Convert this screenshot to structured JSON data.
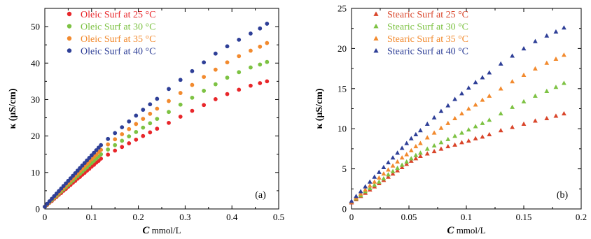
{
  "chart_data": [
    {
      "type": "scatter",
      "panel_label": "(a)",
      "xlabel": {
        "bold": "C",
        "rest": " mmol/L"
      },
      "ylabel": "κ (μS/cm)",
      "xlim": [
        0,
        0.5
      ],
      "ylim": [
        0,
        55
      ],
      "xticks": [
        "0",
        "0.1",
        "0.2",
        "0.3",
        "0.4",
        "0.5"
      ],
      "xtick_values": [
        0,
        0.1,
        0.2,
        0.3,
        0.4,
        0.5
      ],
      "yticks": [
        "0",
        "10",
        "20",
        "30",
        "40",
        "50"
      ],
      "ytick_values": [
        0,
        10,
        20,
        30,
        40,
        50
      ],
      "marker": "circle",
      "legend_position": "top-left",
      "series": [
        {
          "name": "Oleic Surf at 25 °C",
          "color": "#e8262a",
          "x": [
            0.0,
            0.005,
            0.01,
            0.015,
            0.02,
            0.025,
            0.03,
            0.035,
            0.04,
            0.045,
            0.05,
            0.055,
            0.06,
            0.065,
            0.07,
            0.075,
            0.08,
            0.085,
            0.09,
            0.095,
            0.1,
            0.105,
            0.11,
            0.115,
            0.12,
            0.135,
            0.15,
            0.165,
            0.18,
            0.195,
            0.21,
            0.225,
            0.24,
            0.265,
            0.29,
            0.315,
            0.34,
            0.365,
            0.39,
            0.415,
            0.44,
            0.46,
            0.475
          ],
          "y": [
            0.6,
            1.1,
            1.7,
            2.2,
            2.8,
            3.3,
            3.9,
            4.4,
            5.0,
            5.5,
            6.1,
            6.6,
            7.2,
            7.7,
            8.3,
            8.8,
            9.4,
            9.9,
            10.5,
            11.0,
            11.6,
            12.1,
            12.7,
            13.2,
            13.8,
            14.9,
            16.0,
            17.0,
            18.0,
            19.0,
            20.0,
            21.0,
            22.0,
            23.6,
            25.3,
            26.9,
            28.5,
            30.1,
            31.5,
            32.7,
            33.8,
            34.5,
            35.0
          ]
        },
        {
          "name": "Oleic Surf at 30 °C",
          "color": "#7dc243",
          "x": [
            0.0,
            0.005,
            0.01,
            0.015,
            0.02,
            0.025,
            0.03,
            0.035,
            0.04,
            0.045,
            0.05,
            0.055,
            0.06,
            0.065,
            0.07,
            0.075,
            0.08,
            0.085,
            0.09,
            0.095,
            0.1,
            0.105,
            0.11,
            0.115,
            0.12,
            0.135,
            0.15,
            0.165,
            0.18,
            0.195,
            0.21,
            0.225,
            0.24,
            0.265,
            0.29,
            0.315,
            0.34,
            0.365,
            0.39,
            0.415,
            0.44,
            0.46,
            0.475
          ],
          "y": [
            0.6,
            1.2,
            1.8,
            2.4,
            3.0,
            3.6,
            4.2,
            4.8,
            5.4,
            6.0,
            6.6,
            7.2,
            7.8,
            8.4,
            9.0,
            9.6,
            10.2,
            10.8,
            11.4,
            12.0,
            12.6,
            13.2,
            13.8,
            14.4,
            15.0,
            16.3,
            17.5,
            18.7,
            19.9,
            21.1,
            22.3,
            23.5,
            24.7,
            26.6,
            28.6,
            30.5,
            32.4,
            34.2,
            36.0,
            37.5,
            38.8,
            39.6,
            40.3
          ]
        },
        {
          "name": "Oleic Surf at 35 °C",
          "color": "#f28a2e",
          "x": [
            0.0,
            0.005,
            0.01,
            0.015,
            0.02,
            0.025,
            0.03,
            0.035,
            0.04,
            0.045,
            0.05,
            0.055,
            0.06,
            0.065,
            0.07,
            0.075,
            0.08,
            0.085,
            0.09,
            0.095,
            0.1,
            0.105,
            0.11,
            0.115,
            0.12,
            0.135,
            0.15,
            0.165,
            0.18,
            0.195,
            0.21,
            0.225,
            0.24,
            0.265,
            0.29,
            0.315,
            0.34,
            0.365,
            0.39,
            0.415,
            0.44,
            0.46,
            0.475
          ],
          "y": [
            0.6,
            1.3,
            1.9,
            2.6,
            3.2,
            3.9,
            4.5,
            5.2,
            5.8,
            6.5,
            7.1,
            7.8,
            8.4,
            9.1,
            9.7,
            10.4,
            11.0,
            11.7,
            12.3,
            13.0,
            13.6,
            14.3,
            14.9,
            15.6,
            16.2,
            17.7,
            19.1,
            20.5,
            21.9,
            23.3,
            24.7,
            26.1,
            27.5,
            29.6,
            31.8,
            34.0,
            36.2,
            38.2,
            40.2,
            41.9,
            43.4,
            44.5,
            45.5
          ]
        },
        {
          "name": "Oleic Surf at 40 °C",
          "color": "#2e3f97",
          "x": [
            0.0,
            0.005,
            0.01,
            0.015,
            0.02,
            0.025,
            0.03,
            0.035,
            0.04,
            0.045,
            0.05,
            0.055,
            0.06,
            0.065,
            0.07,
            0.075,
            0.08,
            0.085,
            0.09,
            0.095,
            0.1,
            0.105,
            0.11,
            0.115,
            0.12,
            0.135,
            0.15,
            0.165,
            0.18,
            0.195,
            0.21,
            0.225,
            0.24,
            0.265,
            0.29,
            0.315,
            0.34,
            0.365,
            0.39,
            0.415,
            0.44,
            0.46,
            0.475
          ],
          "y": [
            0.6,
            1.4,
            2.1,
            2.8,
            3.5,
            4.2,
            4.9,
            5.6,
            6.3,
            7.0,
            7.7,
            8.4,
            9.1,
            9.8,
            10.5,
            11.2,
            11.9,
            12.6,
            13.3,
            14.0,
            14.7,
            15.4,
            16.1,
            16.8,
            17.5,
            19.2,
            20.8,
            22.4,
            24.0,
            25.6,
            27.2,
            28.7,
            30.2,
            32.9,
            35.4,
            37.8,
            40.2,
            42.6,
            44.6,
            46.4,
            48.1,
            49.5,
            50.8
          ]
        }
      ]
    },
    {
      "type": "scatter",
      "panel_label": "(b)",
      "xlabel": {
        "bold": "C",
        "rest": " mmol/L"
      },
      "ylabel": "κ (μS/cm)",
      "xlim": [
        0,
        0.2
      ],
      "ylim": [
        0,
        25
      ],
      "xticks": [
        "0",
        "0.05",
        "0.1",
        "0.15",
        "0.2"
      ],
      "xtick_values": [
        0,
        0.05,
        0.1,
        0.15,
        0.2
      ],
      "yticks": [
        "0",
        "5",
        "10",
        "15",
        "20",
        "25"
      ],
      "ytick_values": [
        0,
        5,
        10,
        15,
        20,
        25
      ],
      "marker": "triangle",
      "legend_position": "top-left",
      "series": [
        {
          "name": "Stearic Surf at 25 °C",
          "color": "#d9452a",
          "x": [
            0.0,
            0.004,
            0.008,
            0.012,
            0.016,
            0.02,
            0.024,
            0.028,
            0.032,
            0.036,
            0.04,
            0.044,
            0.048,
            0.052,
            0.056,
            0.06,
            0.066,
            0.072,
            0.078,
            0.084,
            0.09,
            0.096,
            0.102,
            0.108,
            0.114,
            0.12,
            0.13,
            0.14,
            0.15,
            0.16,
            0.17,
            0.178,
            0.185
          ],
          "y": [
            0.8,
            1.2,
            1.6,
            2.0,
            2.4,
            2.8,
            3.2,
            3.6,
            4.0,
            4.4,
            4.8,
            5.2,
            5.6,
            6.0,
            6.3,
            6.6,
            6.9,
            7.2,
            7.5,
            7.8,
            8.0,
            8.3,
            8.5,
            8.8,
            9.0,
            9.3,
            9.8,
            10.2,
            10.6,
            11.0,
            11.3,
            11.6,
            11.9
          ]
        },
        {
          "name": "Stearic Surf at 30 °C",
          "color": "#7dc243",
          "x": [
            0.0,
            0.004,
            0.008,
            0.012,
            0.016,
            0.02,
            0.024,
            0.028,
            0.032,
            0.036,
            0.04,
            0.044,
            0.048,
            0.052,
            0.056,
            0.06,
            0.066,
            0.072,
            0.078,
            0.084,
            0.09,
            0.096,
            0.102,
            0.108,
            0.114,
            0.12,
            0.13,
            0.14,
            0.15,
            0.16,
            0.17,
            0.178,
            0.185
          ],
          "y": [
            0.9,
            1.3,
            1.7,
            2.2,
            2.6,
            3.0,
            3.4,
            3.8,
            4.3,
            4.7,
            5.1,
            5.5,
            5.9,
            6.3,
            6.7,
            7.0,
            7.5,
            7.9,
            8.3,
            8.7,
            9.1,
            9.5,
            9.9,
            10.3,
            10.7,
            11.1,
            11.9,
            12.7,
            13.4,
            14.1,
            14.7,
            15.2,
            15.7
          ]
        },
        {
          "name": "Stearic Surf at 35 °C",
          "color": "#f28a2e",
          "x": [
            0.0,
            0.004,
            0.008,
            0.012,
            0.016,
            0.02,
            0.024,
            0.028,
            0.032,
            0.036,
            0.04,
            0.044,
            0.048,
            0.052,
            0.056,
            0.06,
            0.066,
            0.072,
            0.078,
            0.084,
            0.09,
            0.096,
            0.102,
            0.108,
            0.114,
            0.12,
            0.13,
            0.14,
            0.15,
            0.16,
            0.17,
            0.178,
            0.185
          ],
          "y": [
            0.9,
            1.4,
            1.9,
            2.4,
            2.9,
            3.4,
            3.9,
            4.4,
            4.9,
            5.4,
            5.9,
            6.4,
            6.8,
            7.3,
            7.8,
            8.2,
            8.9,
            9.5,
            10.1,
            10.7,
            11.3,
            11.9,
            12.5,
            13.0,
            13.6,
            14.1,
            15.0,
            15.9,
            16.7,
            17.5,
            18.2,
            18.7,
            19.2
          ]
        },
        {
          "name": "Stearic Surf at 40 °C",
          "color": "#2e3f97",
          "x": [
            0.0,
            0.004,
            0.008,
            0.012,
            0.016,
            0.02,
            0.024,
            0.028,
            0.032,
            0.036,
            0.04,
            0.044,
            0.048,
            0.052,
            0.056,
            0.06,
            0.066,
            0.072,
            0.078,
            0.084,
            0.09,
            0.096,
            0.102,
            0.108,
            0.114,
            0.12,
            0.13,
            0.14,
            0.15,
            0.16,
            0.17,
            0.178,
            0.185
          ],
          "y": [
            1.0,
            1.6,
            2.2,
            2.8,
            3.4,
            4.0,
            4.6,
            5.2,
            5.8,
            6.4,
            7.0,
            7.6,
            8.2,
            8.8,
            9.3,
            9.8,
            10.6,
            11.4,
            12.2,
            12.9,
            13.7,
            14.4,
            15.1,
            15.8,
            16.4,
            17.0,
            18.1,
            19.1,
            20.0,
            20.9,
            21.6,
            22.1,
            22.6
          ]
        }
      ]
    }
  ]
}
